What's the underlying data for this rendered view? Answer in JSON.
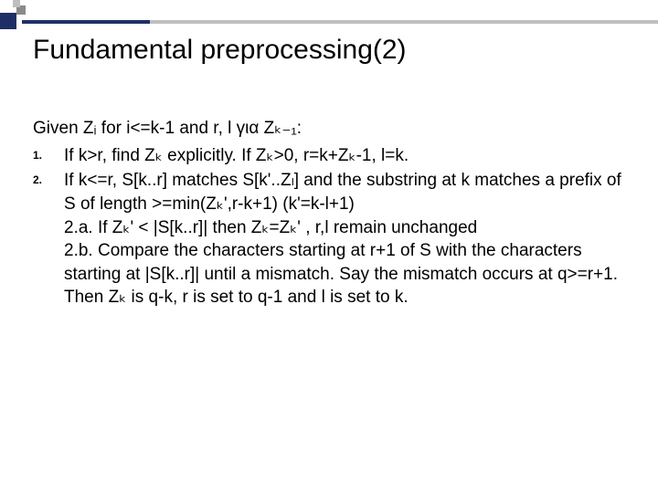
{
  "title": "Fundamental preprocessing(2)",
  "given": "Given Zᵢ for i<=k-1 and r, l για Zₖ₋₁:",
  "items": [
    {
      "num": "1.",
      "text": "If k>r, find Zₖ explicitly. If Zₖ>0, r=k+Zₖ-1, l=k."
    },
    {
      "num": "2.",
      "text": "If k<=r, S[k..r] matches S[k'..Zₗ] and the substring at k matches a prefix of S of length >=min(Zₖ',r-k+1)  (k'=k-l+1)",
      "sub": [
        "2.a. If Zₖ' < |S[k..r]| then Zₖ=Zₖ' , r,l remain unchanged",
        "2.b. Compare the characters starting at r+1 of S with the characters starting at |S[k..r]| until a mismatch. Say the mismatch occurs at q>=r+1. Then Zₖ is q-k, r is set to q-1 and l is set to k."
      ]
    }
  ],
  "colors": {
    "navy": "#1f2f66",
    "grey": "#bfbfbf",
    "text": "#000000",
    "background": "#ffffff"
  },
  "typography": {
    "title_fontsize": 30,
    "body_fontsize": 19,
    "list_num_fontsize": 12,
    "font_family": "Arial"
  }
}
